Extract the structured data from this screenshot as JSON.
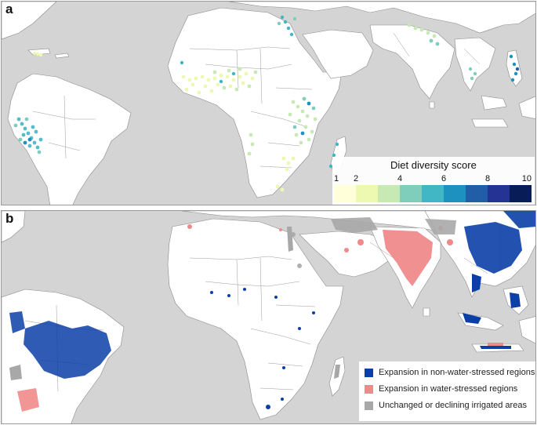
{
  "panel_a": {
    "label": "a",
    "legend": {
      "title": "Diet diversity score",
      "ticks": [
        "1",
        "2",
        "4",
        "6",
        "8",
        "10"
      ],
      "colors": [
        "#ffffd9",
        "#edf8b1",
        "#c7e9b4",
        "#7fcdbb",
        "#41b6c4",
        "#1d91c0",
        "#225ea8",
        "#253494",
        "#081d58"
      ]
    }
  },
  "panel_b": {
    "label": "b",
    "legend": {
      "items": [
        {
          "label": "Expansion in non-water-stressed regions",
          "color": "#0b3fa8"
        },
        {
          "label": "Expansion in water-stressed regions",
          "color": "#f08a8a"
        },
        {
          "label": "Unchanged or declining irrigated areas",
          "color": "#a8a8a8"
        }
      ]
    }
  },
  "colors": {
    "ocean": "#d4d4d4",
    "land": "#ffffff",
    "border": "#8a8a8a"
  }
}
